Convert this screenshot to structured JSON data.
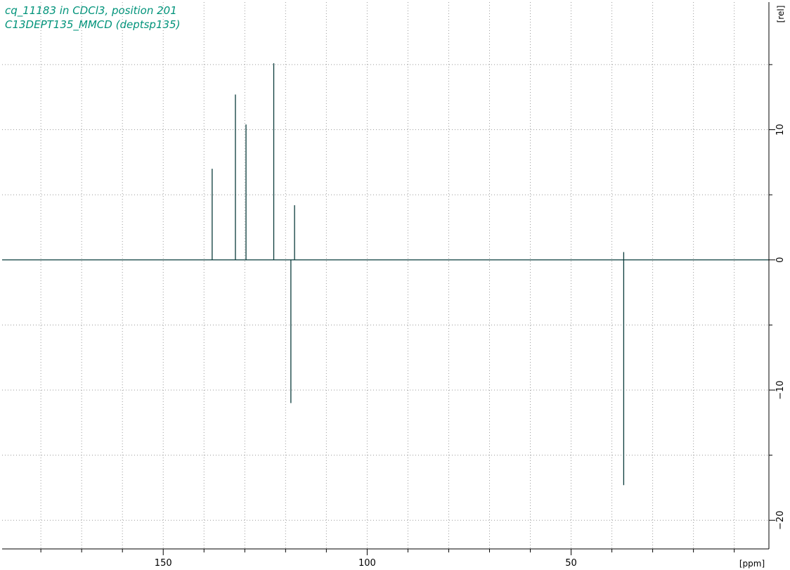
{
  "chart_data": {
    "type": "line",
    "title_lines": [
      "cq_11183 in CDCl3, position 201",
      "C13DEPT135_MMCD (deptsp135)"
    ],
    "xlabel": "[ppm]",
    "ylabel": "[rel]",
    "x_reversed": true,
    "xlim": [
      189.5,
      1.5
    ],
    "ylim": [
      -22.2,
      19.8
    ],
    "x_ticks": [
      150,
      100,
      50
    ],
    "y_ticks": [
      10,
      0,
      -10,
      -20
    ],
    "grid": true,
    "series": [
      {
        "peaks": [
          {
            "ppm": 138.0,
            "intensity": 7.0
          },
          {
            "ppm": 132.3,
            "intensity": 12.7
          },
          {
            "ppm": 129.7,
            "intensity": 10.4
          },
          {
            "ppm": 122.9,
            "intensity": 15.1
          },
          {
            "ppm": 118.7,
            "intensity": -11.0
          },
          {
            "ppm": 117.8,
            "intensity": 4.2
          },
          {
            "ppm": 37.1,
            "intensity": -17.3
          },
          {
            "ppm": 37.1,
            "intensity": 0.6
          }
        ]
      }
    ]
  },
  "colors": {
    "title": "#00937a",
    "spectrum": "#0a3b3b",
    "grid": "#9a9a9a",
    "axis": "#000000"
  }
}
